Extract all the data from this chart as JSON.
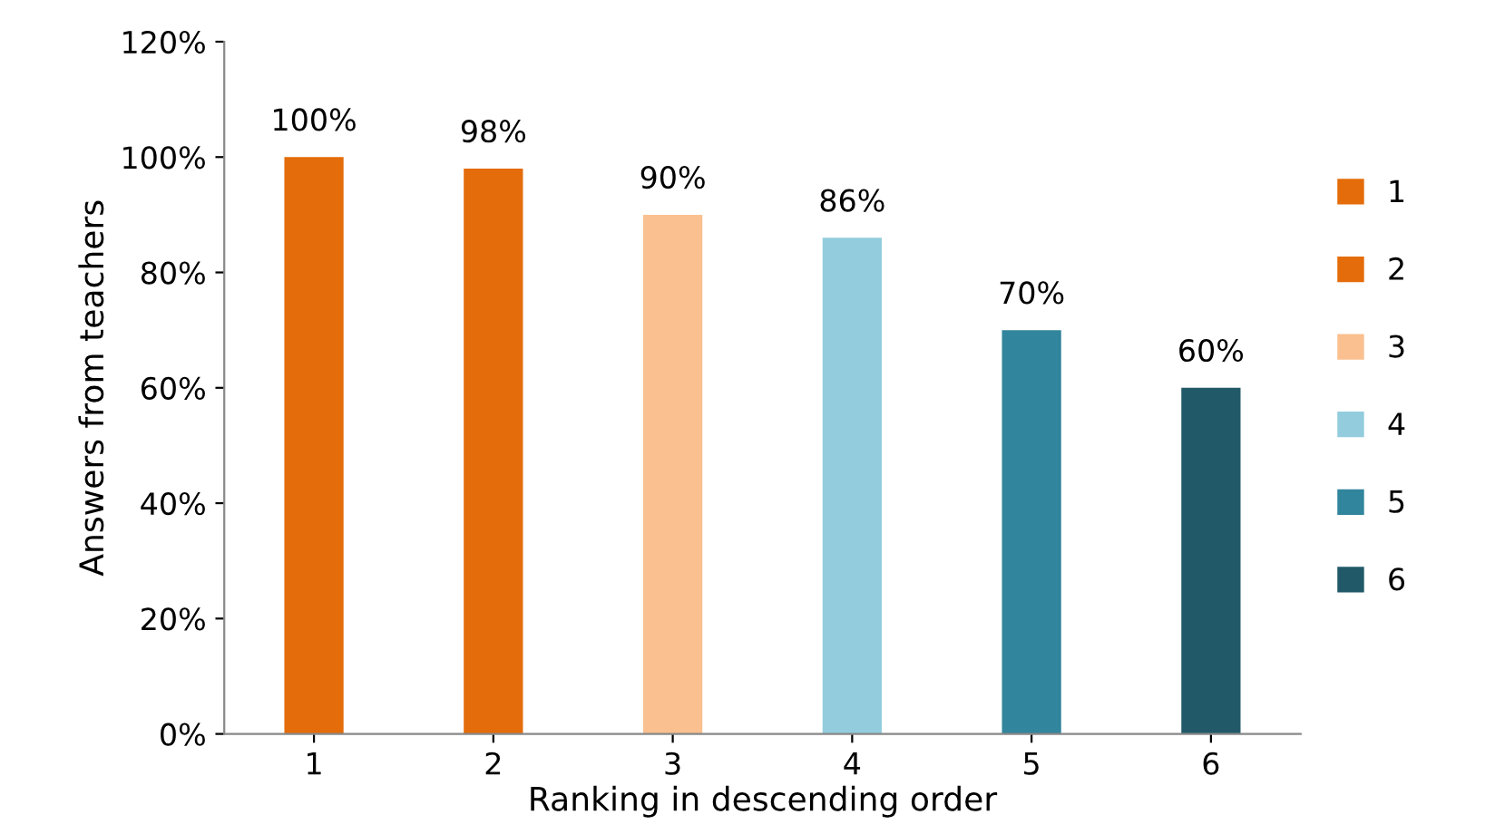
{
  "chart_data": {
    "type": "bar",
    "xlabel": "Ranking in descending order",
    "ylabel": "Answers from teachers",
    "categories": [
      "1",
      "2",
      "3",
      "4",
      "5",
      "6"
    ],
    "series": [
      {
        "name": "1",
        "color": "#e46c0a",
        "values": [
          100,
          null,
          null,
          null,
          null,
          null
        ],
        "value_labels": [
          "100%",
          null,
          null,
          null,
          null,
          null
        ]
      },
      {
        "name": "2",
        "color": "#e46c0a",
        "values": [
          null,
          98,
          null,
          null,
          null,
          null
        ],
        "value_labels": [
          null,
          "98%",
          null,
          null,
          null,
          null
        ]
      },
      {
        "name": "3",
        "color": "#fac090",
        "values": [
          null,
          null,
          90,
          null,
          null,
          null
        ],
        "value_labels": [
          null,
          null,
          "90%",
          null,
          null,
          null
        ]
      },
      {
        "name": "4",
        "color": "#93cddd",
        "values": [
          null,
          null,
          null,
          86,
          null,
          null
        ],
        "value_labels": [
          null,
          null,
          null,
          "86%",
          null,
          null
        ]
      },
      {
        "name": "5",
        "color": "#31859c",
        "values": [
          null,
          null,
          null,
          null,
          70,
          null
        ],
        "value_labels": [
          null,
          null,
          null,
          null,
          "70%",
          null
        ]
      },
      {
        "name": "6",
        "color": "#215968",
        "values": [
          null,
          null,
          null,
          null,
          null,
          60
        ],
        "value_labels": [
          null,
          null,
          null,
          null,
          null,
          "60%"
        ]
      }
    ],
    "ylim": [
      0,
      120
    ],
    "yticks": [
      {
        "value": 0,
        "label": "0%"
      },
      {
        "value": 20,
        "label": "20%"
      },
      {
        "value": 40,
        "label": "40%"
      },
      {
        "value": 60,
        "label": "60%"
      },
      {
        "value": 80,
        "label": "80%"
      },
      {
        "value": 100,
        "label": "100%"
      },
      {
        "value": 120,
        "label": "120%"
      }
    ],
    "grid": false,
    "legend": "right"
  }
}
